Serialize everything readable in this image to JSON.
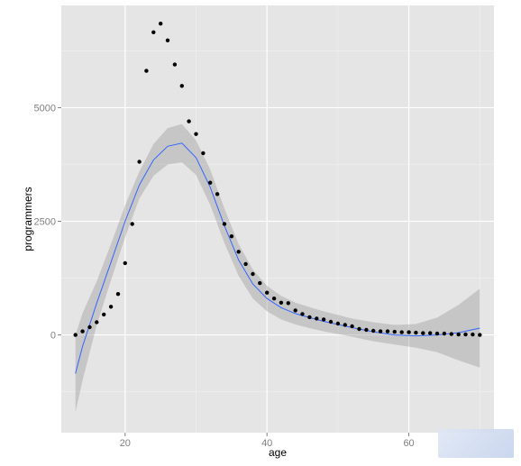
{
  "chart_data": {
    "type": "scatter",
    "title": "",
    "xlabel": "age",
    "ylabel": "programmers",
    "xlim": [
      11,
      72
    ],
    "ylim": [
      -2150,
      7250
    ],
    "x_ticks": [
      20,
      40,
      60
    ],
    "x_tick_labels": [
      "20",
      "40",
      "60"
    ],
    "y_ticks": [
      0,
      2500,
      5000
    ],
    "y_tick_labels": [
      "0",
      "2500",
      "5000"
    ],
    "grid": true,
    "legend": "none",
    "series": [
      {
        "kind": "points",
        "x": [
          13,
          14,
          15,
          16,
          17,
          18,
          19,
          20,
          21,
          22,
          23,
          24,
          25,
          26,
          27,
          28,
          29,
          30,
          31,
          32,
          33,
          34,
          35,
          36,
          37,
          38,
          39,
          40,
          41,
          42,
          43,
          44,
          45,
          46,
          47,
          48,
          49,
          50,
          51,
          52,
          53,
          54,
          55,
          56,
          57,
          58,
          59,
          60,
          61,
          62,
          63,
          64,
          65,
          66,
          67,
          68,
          69,
          70
        ],
        "y": [
          0,
          80,
          170,
          280,
          450,
          620,
          900,
          1580,
          2440,
          3810,
          5810,
          6660,
          6850,
          6480,
          5950,
          5480,
          4700,
          4420,
          4000,
          3350,
          3100,
          2440,
          2170,
          1830,
          1560,
          1340,
          1140,
          930,
          800,
          710,
          700,
          540,
          460,
          390,
          360,
          340,
          290,
          250,
          220,
          190,
          130,
          110,
          90,
          80,
          80,
          70,
          60,
          60,
          50,
          40,
          40,
          30,
          30,
          20,
          10,
          10,
          10,
          0
        ]
      },
      {
        "kind": "smooth",
        "x": [
          13,
          14,
          16,
          18,
          20,
          22,
          24,
          26,
          28,
          30,
          32,
          34,
          36,
          38,
          40,
          42,
          44,
          46,
          48,
          50,
          52,
          55,
          58,
          61,
          64,
          67,
          70
        ],
        "y": [
          -850,
          -250,
          700,
          1600,
          2500,
          3300,
          3850,
          4150,
          4220,
          3900,
          3250,
          2400,
          1650,
          1120,
          800,
          600,
          470,
          380,
          300,
          230,
          160,
          70,
          0,
          -20,
          0,
          50,
          150
        ]
      },
      {
        "kind": "band",
        "x": [
          13,
          14,
          16,
          18,
          20,
          22,
          24,
          26,
          28,
          30,
          32,
          34,
          36,
          38,
          40,
          42,
          44,
          46,
          48,
          50,
          52,
          55,
          58,
          61,
          64,
          67,
          70
        ],
        "lower": [
          -1700,
          -1000,
          220,
          1200,
          2150,
          3000,
          3500,
          3750,
          3800,
          3520,
          2860,
          2020,
          1300,
          800,
          520,
          340,
          230,
          150,
          80,
          20,
          -40,
          -140,
          -210,
          -280,
          -380,
          -560,
          -720
        ],
        "upper": [
          0,
          480,
          1180,
          2000,
          2850,
          3600,
          4200,
          4550,
          4640,
          4280,
          3640,
          2780,
          2000,
          1440,
          1080,
          860,
          710,
          610,
          520,
          440,
          360,
          280,
          220,
          240,
          380,
          660,
          1020
        ]
      }
    ],
    "colors": {
      "panel": "#e5e5e5",
      "grid": "#ffffff",
      "points": "#000000",
      "line": "#3366ff",
      "band": "#999999"
    }
  }
}
